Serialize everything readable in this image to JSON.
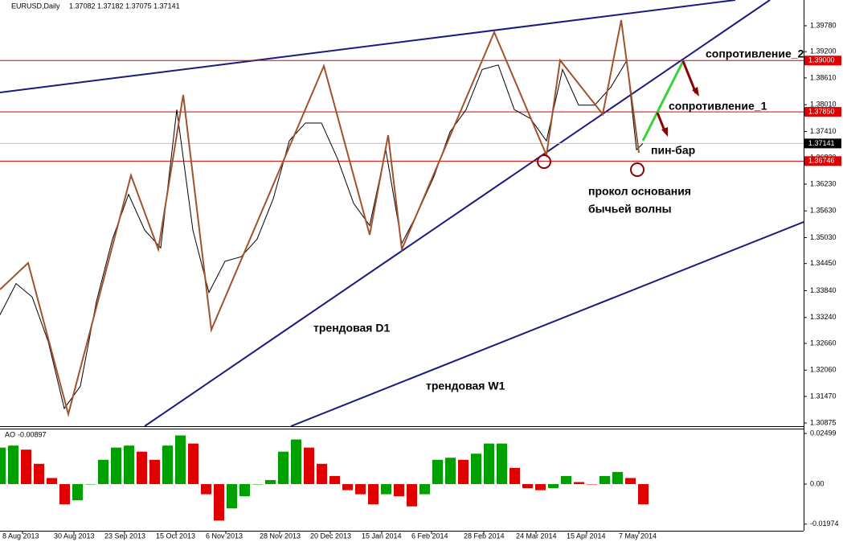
{
  "chart_data": [
    {
      "type": "line",
      "title": "EURUSD,Daily",
      "subtitle": "1.37082 1.37182 1.37075 1.37141",
      "xlim": [
        0,
        250
      ],
      "ylim": [
        1.30803,
        1.40357
      ],
      "yticks": [
        {
          "value": 1.3978,
          "label": "1.39780"
        },
        {
          "value": 1.392,
          "label": "1.39200"
        },
        {
          "value": 1.3861,
          "label": "1.38610"
        },
        {
          "value": 1.3801,
          "label": "1.38010"
        },
        {
          "value": 1.3741,
          "label": "1.37410"
        },
        {
          "value": 1.3682,
          "label": "1.36820"
        },
        {
          "value": 1.3623,
          "label": "1.36230"
        },
        {
          "value": 1.3563,
          "label": "1.35630"
        },
        {
          "value": 1.3503,
          "label": "1.35030"
        },
        {
          "value": 1.3445,
          "label": "1.34450"
        },
        {
          "value": 1.3384,
          "label": "1.33840"
        },
        {
          "value": 1.3324,
          "label": "1.33240"
        },
        {
          "value": 1.3266,
          "label": "1.32660"
        },
        {
          "value": 1.3206,
          "label": "1.32060"
        },
        {
          "value": 1.3147,
          "label": "1.31470"
        },
        {
          "value": 1.30875,
          "label": "1.30875"
        }
      ],
      "series": [
        {
          "color": "#000000",
          "x": [
            0,
            5,
            10,
            15,
            20,
            25,
            30,
            35,
            40,
            45,
            50,
            55,
            60,
            65,
            70,
            75,
            80,
            85,
            90,
            95,
            100,
            105,
            110,
            115,
            120,
            125,
            130,
            135,
            140,
            145,
            150,
            155,
            160,
            165,
            170,
            175,
            180,
            185,
            190,
            195,
            198,
            200
          ],
          "values": [
            1.333,
            1.34,
            1.337,
            1.327,
            1.312,
            1.317,
            1.336,
            1.35,
            1.36,
            1.352,
            1.348,
            1.379,
            1.352,
            1.338,
            1.345,
            1.346,
            1.35,
            1.359,
            1.372,
            1.376,
            1.376,
            1.368,
            1.358,
            1.353,
            1.37,
            1.349,
            1.356,
            1.364,
            1.374,
            1.379,
            1.388,
            1.389,
            1.379,
            1.377,
            1.372,
            1.388,
            1.38,
            1.38,
            1.384,
            1.39,
            1.37,
            1.3714
          ]
        },
        {
          "color": "#a0522d",
          "x": [
            0,
            8.75,
            21.25,
            40.75,
            49.25,
            57,
            65.75,
            100.75,
            115,
            120.75,
            125,
            153.75,
            170,
            174.25,
            187.5,
            193.25,
            198.75
          ],
          "values": [
            1.33867,
            1.34462,
            1.31073,
            1.36427,
            1.34768,
            1.3823,
            1.32965,
            1.38879,
            1.35093,
            1.37328,
            1.34768,
            1.39636,
            1.36878,
            1.39005,
            1.37797,
            1.39906,
            1.36932
          ]
        }
      ],
      "levels": [
        {
          "value": 1.39,
          "label": "1.39000",
          "color": "#e00000"
        },
        {
          "value": 1.3785,
          "label": "1.37850",
          "color": "#e00000"
        },
        {
          "value": 1.36746,
          "label": "1.36746",
          "color": "#e00000"
        },
        {
          "value": 1.37141,
          "label": "1.37141",
          "color": "#000000"
        }
      ],
      "trendlines": [
        {
          "x": [
            0,
            228.75
          ],
          "values": [
            1.38284,
            1.40357
          ],
          "color": "#1a1a80"
        },
        {
          "x": [
            45,
            239.5
          ],
          "values": [
            1.30803,
            1.40357
          ],
          "color": "#1a1a80"
        },
        {
          "x": [
            90.5,
            251.25
          ],
          "values": [
            1.30803,
            1.35417
          ],
          "color": "#1a1a80"
        }
      ],
      "annotations": [
        "сопротивление_2",
        "сопротивление_1",
        "пин-бар",
        "прокол основания",
        "бычьей волны",
        "трендовая D1",
        "трендовая W1"
      ]
    },
    {
      "type": "bar",
      "title": "AO",
      "subtitle": "-0.00897",
      "xlim": [
        0,
        250
      ],
      "ylim": [
        -0.02301,
        0.02737
      ],
      "yticks": [
        0.02499,
        {
          "value": 0,
          "label": "0.00"
        },
        -0.01974
      ],
      "xticks": [
        {
          "value": 7,
          "label": "8 Aug 2013"
        },
        {
          "value": 23,
          "label": "30 Aug 2013"
        },
        {
          "value": 38.75,
          "label": "23 Sep 2013"
        },
        {
          "value": 54.75,
          "label": "15 Oct 2013"
        },
        {
          "value": 70.25,
          "label": "6 Nov 2013"
        },
        {
          "value": 87,
          "label": "28 Nov 2013"
        },
        {
          "value": 102.75,
          "label": "20 Dec 2013"
        },
        {
          "value": 118.75,
          "label": "15 Jan 2014"
        },
        {
          "value": 134.25,
          "label": "6 Feb 2014"
        },
        {
          "value": 150.5,
          "label": "28 Feb 2014"
        },
        {
          "value": 166.75,
          "label": "24 Mar 2014"
        },
        {
          "value": 182.5,
          "label": "15 Apr 2014"
        },
        {
          "value": 198.75,
          "label": "7 May 2014"
        }
      ],
      "colors": [
        "#00a000",
        "#e00000"
      ],
      "values": [
        0.018,
        0.019,
        0.017,
        0.01,
        0.003,
        -0.01,
        -0.008,
        0.0,
        0.012,
        0.018,
        0.019,
        0.016,
        0.012,
        0.019,
        0.024,
        0.02,
        -0.005,
        -0.018,
        -0.012,
        -0.006,
        0.0,
        0.002,
        0.016,
        0.022,
        0.018,
        0.01,
        0.004,
        -0.003,
        -0.005,
        -0.01,
        -0.005,
        -0.006,
        -0.011,
        -0.005,
        0.012,
        0.013,
        0.012,
        0.015,
        0.02,
        0.02,
        0.008,
        -0.002,
        -0.003,
        -0.002,
        0.004,
        0.001,
        0.0,
        0.004,
        0.006,
        0.003,
        -0.01
      ]
    }
  ]
}
